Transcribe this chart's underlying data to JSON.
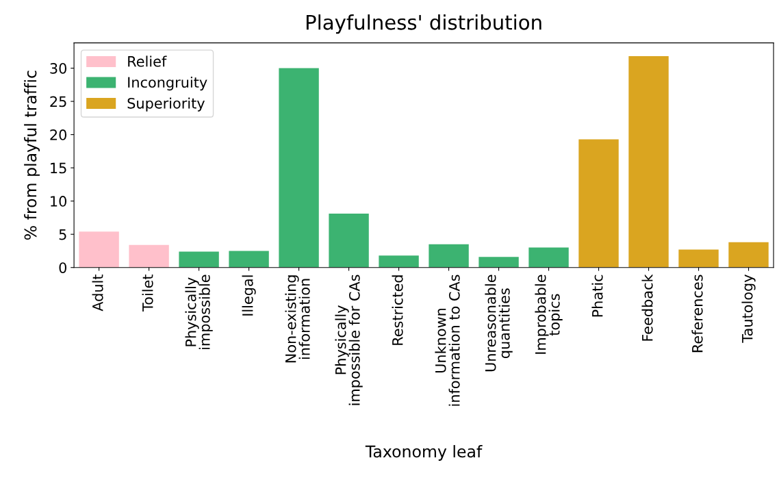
{
  "chart_data": {
    "type": "bar",
    "title": "Playfulness' distribution",
    "xlabel": "Taxonomy leaf",
    "ylabel": "% from playful traffic",
    "categories": [
      "Adult",
      "Toilet",
      "Physically\nimpossible",
      "Illegal",
      "Non-existing\ninformation",
      "Physically\nimpossible for CAs",
      "Restricted",
      "Unknown\ninformation to CAs",
      "Unreasonable\nquantities",
      "Improbable\ntopics",
      "Phatic",
      "Feedback",
      "References",
      "Tautology"
    ],
    "series": [
      {
        "name": "Relief",
        "color": "#ffc0cb",
        "values": [
          5.4,
          3.4,
          null,
          null,
          null,
          null,
          null,
          null,
          null,
          null,
          null,
          null,
          null,
          null
        ]
      },
      {
        "name": "Incongruity",
        "color": "#3cb371",
        "values": [
          null,
          null,
          2.4,
          2.5,
          30.0,
          8.1,
          1.8,
          3.5,
          1.6,
          3.0,
          null,
          null,
          null,
          null
        ]
      },
      {
        "name": "Superiority",
        "color": "#daa520",
        "values": [
          null,
          null,
          null,
          null,
          null,
          null,
          null,
          null,
          null,
          null,
          19.3,
          31.8,
          2.7,
          3.8
        ]
      }
    ],
    "ylim": [
      0,
      33.8
    ],
    "yticks": [
      0,
      5,
      10,
      15,
      20,
      25,
      30
    ],
    "grid": false,
    "legend": "top left"
  }
}
